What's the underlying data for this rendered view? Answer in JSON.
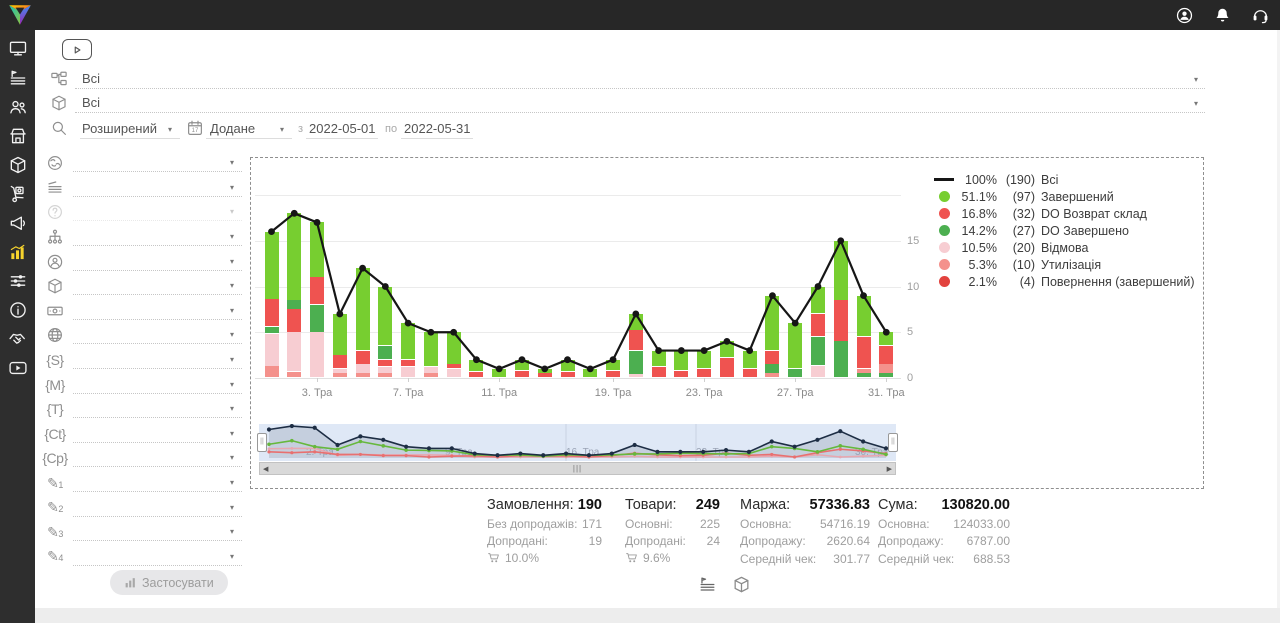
{
  "ui": {
    "caret": "▾",
    "scroll_left": "◀",
    "scroll_right": "▶",
    "grip": "|||"
  },
  "topbar": {
    "icons": [
      {
        "name": "user-menu",
        "icon": "user-circle"
      },
      {
        "name": "notifications",
        "icon": "bell"
      },
      {
        "name": "support",
        "icon": "headset"
      }
    ]
  },
  "sidebar": {
    "items": [
      {
        "name": "dashboard",
        "icon": "monitor",
        "active": false
      },
      {
        "name": "orders",
        "icon": "list-flag",
        "active": false
      },
      {
        "name": "customers",
        "icon": "users",
        "active": false
      },
      {
        "name": "store",
        "icon": "store",
        "active": false
      },
      {
        "name": "products",
        "icon": "box",
        "active": false
      },
      {
        "name": "procurement",
        "icon": "trolley",
        "active": false
      },
      {
        "name": "marketing",
        "icon": "megaphone",
        "active": false
      },
      {
        "name": "analytics",
        "icon": "chart-bars",
        "active": true
      },
      {
        "name": "settings",
        "icon": "sliders",
        "active": false
      },
      {
        "name": "info",
        "icon": "info",
        "active": false
      },
      {
        "name": "partners",
        "icon": "handshake",
        "active": false
      },
      {
        "name": "video-lessons",
        "icon": "play-rect",
        "active": false
      }
    ]
  },
  "filters": {
    "status_filter": {
      "value": "Всі"
    },
    "product_filter": {
      "value": "Всі"
    },
    "search_mode": "Розширений",
    "date_field": "Додане",
    "date_from_label": "з",
    "date_from": "2022-05-01",
    "date_to_label": "по",
    "date_to": "2022-05-31",
    "apply_label": "Застосувати",
    "side_rows": [
      {
        "name": "source-globe",
        "icon": "globe-land"
      },
      {
        "name": "sort",
        "icon": "sort"
      },
      {
        "name": "help",
        "icon": "help",
        "disabled": true
      },
      {
        "name": "structure",
        "icon": "hierarchy"
      },
      {
        "name": "manager",
        "icon": "person-o"
      },
      {
        "name": "product-box",
        "icon": "box"
      },
      {
        "name": "payment",
        "icon": "banknote"
      },
      {
        "name": "site",
        "icon": "globe-wire"
      },
      {
        "name": "tag-s",
        "glyph": "{S}"
      },
      {
        "name": "tag-m",
        "glyph": "{M}"
      },
      {
        "name": "tag-t",
        "glyph": "{T}"
      },
      {
        "name": "tag-ct",
        "glyph": "{Ct}"
      },
      {
        "name": "tag-cp",
        "glyph": "{Cp}"
      },
      {
        "name": "note-1",
        "glyph": "✎",
        "sub": "1"
      },
      {
        "name": "note-2",
        "glyph": "✎",
        "sub": "2"
      },
      {
        "name": "note-3",
        "glyph": "✎",
        "sub": "3"
      },
      {
        "name": "note-4",
        "glyph": "✎",
        "sub": "4"
      }
    ]
  },
  "chart_data": {
    "type": "bar+line",
    "title": "",
    "ylim": [
      0,
      20
    ],
    "y_ticks": [
      0,
      5,
      10,
      15
    ],
    "x_tick_labels": [
      {
        "i": 2,
        "label": "3. Тра"
      },
      {
        "i": 6,
        "label": "7. Тра"
      },
      {
        "i": 10,
        "label": "11. Тра"
      },
      {
        "i": 15,
        "label": "19. Тра"
      },
      {
        "i": 19,
        "label": "23. Тра"
      },
      {
        "i": 23,
        "label": "27. Тра"
      },
      {
        "i": 27,
        "label": "31. Тра"
      }
    ],
    "segment_colors": {
      "z": "#77CE30",
      "r": "#EF5350",
      "g2": "#4CAF50",
      "v": "#F7CDD2",
      "u": "#F4918C",
      "p": "#E2423E"
    },
    "line_series": {
      "name": "Всі",
      "color": "#161616",
      "values": [
        16,
        18,
        17,
        7,
        12,
        10,
        6,
        5,
        5,
        2,
        1,
        2,
        1,
        2,
        1,
        2,
        7,
        3,
        3,
        3,
        4,
        3,
        9,
        6,
        10,
        15,
        9,
        5
      ]
    },
    "bars": [
      [
        [
          "u",
          1.3
        ],
        [
          "v",
          3.5
        ],
        [
          "g2",
          0.8
        ],
        [
          "r",
          3
        ],
        [
          "z",
          7.4
        ]
      ],
      [
        [
          "u",
          0.7
        ],
        [
          "v",
          4.3
        ],
        [
          "r",
          2.5
        ],
        [
          "g2",
          1
        ],
        [
          "z",
          9.5
        ]
      ],
      [
        [
          "v",
          5
        ],
        [
          "g2",
          3
        ],
        [
          "r",
          3
        ],
        [
          "z",
          6
        ]
      ],
      [
        [
          "u",
          0.5
        ],
        [
          "v",
          0.5
        ],
        [
          "r",
          1.5
        ],
        [
          "z",
          4.5
        ]
      ],
      [
        [
          "u",
          0.5
        ],
        [
          "v",
          1
        ],
        [
          "r",
          1.5
        ],
        [
          "z",
          9
        ]
      ],
      [
        [
          "u",
          0.5
        ],
        [
          "v",
          0.7
        ],
        [
          "r",
          0.8
        ],
        [
          "g2",
          1.5
        ],
        [
          "z",
          6.5
        ]
      ],
      [
        [
          "v",
          1.2
        ],
        [
          "r",
          0.8
        ],
        [
          "z",
          4
        ]
      ],
      [
        [
          "u",
          0.5
        ],
        [
          "v",
          0.7
        ],
        [
          "z",
          3.8
        ]
      ],
      [
        [
          "v",
          1
        ],
        [
          "r",
          0.5
        ],
        [
          "z",
          3.5
        ]
      ],
      [
        [
          "r",
          0.7
        ],
        [
          "z",
          1.3
        ]
      ],
      [
        [
          "z",
          1
        ]
      ],
      [
        [
          "r",
          0.8
        ],
        [
          "z",
          1.2
        ]
      ],
      [
        [
          "r",
          0.5
        ],
        [
          "z",
          0.5
        ]
      ],
      [
        [
          "r",
          0.7
        ],
        [
          "z",
          1.3
        ]
      ],
      [
        [
          "z",
          1
        ]
      ],
      [
        [
          "r",
          0.8
        ],
        [
          "z",
          1.2
        ]
      ],
      [
        [
          "v",
          0.4
        ],
        [
          "g2",
          2.6
        ],
        [
          "r",
          2.2
        ],
        [
          "z",
          1.8
        ]
      ],
      [
        [
          "r",
          1.2
        ],
        [
          "z",
          1.8
        ]
      ],
      [
        [
          "r",
          0.8
        ],
        [
          "z",
          2.2
        ]
      ],
      [
        [
          "r",
          1
        ],
        [
          "z",
          2
        ]
      ],
      [
        [
          "r",
          2.2
        ],
        [
          "z",
          1.8
        ]
      ],
      [
        [
          "r",
          1
        ],
        [
          "z",
          2
        ]
      ],
      [
        [
          "u",
          0.5
        ],
        [
          "g2",
          1
        ],
        [
          "r",
          1.5
        ],
        [
          "z",
          6
        ]
      ],
      [
        [
          "g2",
          1
        ],
        [
          "z",
          5
        ]
      ],
      [
        [
          "v",
          1.3
        ],
        [
          "g2",
          3.2
        ],
        [
          "r",
          2.5
        ],
        [
          "z",
          3
        ]
      ],
      [
        [
          "g2",
          4
        ],
        [
          "r",
          4.5
        ],
        [
          "z",
          6.5
        ]
      ],
      [
        [
          "g2",
          0.5
        ],
        [
          "u",
          0.5
        ],
        [
          "r",
          3.5
        ],
        [
          "z",
          4.5
        ]
      ],
      [
        [
          "g2",
          0.5
        ],
        [
          "u",
          1
        ],
        [
          "r",
          2
        ],
        [
          "z",
          1.5
        ]
      ]
    ],
    "legend": [
      {
        "swatch": "line",
        "color": "#161616",
        "pct": "100%",
        "count": "(190)",
        "label": "Всі"
      },
      {
        "swatch": "dot",
        "color": "#77CE30",
        "pct": "51.1%",
        "count": "(97)",
        "label": "Завершений"
      },
      {
        "swatch": "dot",
        "color": "#EF5350",
        "pct": "16.8%",
        "count": "(32)",
        "label": "DO Возврат склад"
      },
      {
        "swatch": "dot",
        "color": "#4CAF50",
        "pct": "14.2%",
        "count": "(27)",
        "label": "DO Завершено"
      },
      {
        "swatch": "dot",
        "color": "#F7CDD2",
        "pct": "10.5%",
        "count": "(20)",
        "label": "Відмова"
      },
      {
        "swatch": "dot",
        "color": "#F4918C",
        "pct": "5.3%",
        "count": "(10)",
        "label": "Утилізація"
      },
      {
        "swatch": "dot",
        "color": "#E2423E",
        "pct": "2.1%",
        "count": "(4)",
        "label": "Повернення (завершений)"
      }
    ],
    "navigator": {
      "labels": [
        {
          "x": 47,
          "label": "2. Тра"
        },
        {
          "x": 186,
          "label": "9. Тра"
        },
        {
          "x": 307,
          "label": "16. Тра"
        },
        {
          "x": 437,
          "label": "23. Тра"
        },
        {
          "x": 596,
          "label": "30. Тра"
        }
      ]
    }
  },
  "stats": {
    "columns": [
      {
        "name": "orders",
        "title": "Замовлення:",
        "value": "190",
        "rows": [
          [
            "Без допродажів:",
            "171"
          ],
          [
            "Допродані:",
            "19"
          ]
        ],
        "cart_pct": "10.0%"
      },
      {
        "name": "items",
        "title": "Товари:",
        "value": "249",
        "rows": [
          [
            "Основні:",
            "225"
          ],
          [
            "Допродані:",
            "24"
          ]
        ],
        "cart_pct": "9.6%"
      },
      {
        "name": "margin",
        "title": "Маржа:",
        "value": "57336.83",
        "rows": [
          [
            "Основна:",
            "54716.19"
          ],
          [
            "Допродажу:",
            "2620.64"
          ],
          [
            "Середній чек:",
            "301.77"
          ]
        ]
      },
      {
        "name": "sum",
        "title": "Сума:",
        "value": "130820.00",
        "rows": [
          [
            "Основна:",
            "124033.00"
          ],
          [
            "Допродажу:",
            "6787.00"
          ],
          [
            "Середній чек:",
            "688.53"
          ]
        ]
      }
    ]
  }
}
